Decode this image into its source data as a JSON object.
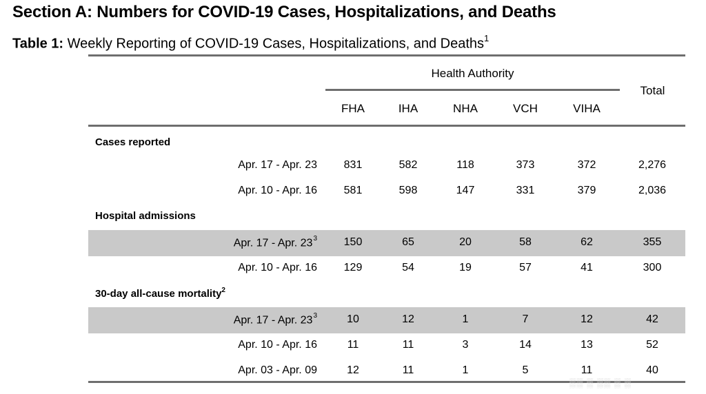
{
  "section_title": "Section A: Numbers for COVID-19 Cases, Hospitalizations, and Deaths",
  "caption": {
    "label": "Table 1:",
    "text": "Weekly Reporting of COVID-19 Cases, Hospitalizations, and Deaths",
    "footnote": "1"
  },
  "header": {
    "group": "Health Authority",
    "total": "Total",
    "columns": [
      "FHA",
      "IHA",
      "NHA",
      "VCH",
      "VIHA"
    ]
  },
  "groups": [
    {
      "label": "Cases reported",
      "footnote": "",
      "rows": [
        {
          "period": "Apr. 17 - Apr. 23",
          "footnote": "",
          "shaded": false,
          "values": [
            "831",
            "582",
            "118",
            "373",
            "372",
            "2,276"
          ]
        },
        {
          "period": "Apr. 10 - Apr. 16",
          "footnote": "",
          "shaded": false,
          "values": [
            "581",
            "598",
            "147",
            "331",
            "379",
            "2,036"
          ]
        }
      ]
    },
    {
      "label": "Hospital admissions",
      "footnote": "",
      "rows": [
        {
          "period": "Apr. 17 - Apr. 23",
          "footnote": "3",
          "shaded": true,
          "values": [
            "150",
            "65",
            "20",
            "58",
            "62",
            "355"
          ]
        },
        {
          "period": "Apr. 10 - Apr. 16",
          "footnote": "",
          "shaded": false,
          "values": [
            "129",
            "54",
            "19",
            "57",
            "41",
            "300"
          ]
        }
      ]
    },
    {
      "label": "30-day all-cause mortality",
      "footnote": "2",
      "rows": [
        {
          "period": "Apr. 17 - Apr. 23",
          "footnote": "3",
          "shaded": true,
          "values": [
            "10",
            "12",
            "1",
            "7",
            "12",
            "42"
          ]
        },
        {
          "period": "Apr. 10 - Apr. 16",
          "footnote": "",
          "shaded": false,
          "values": [
            "11",
            "11",
            "3",
            "14",
            "13",
            "52"
          ]
        },
        {
          "period": "Apr. 03 - Apr. 09",
          "footnote": "",
          "shaded": false,
          "values": [
            "12",
            "11",
            "1",
            "5",
            "11",
            "40"
          ]
        }
      ]
    }
  ]
}
